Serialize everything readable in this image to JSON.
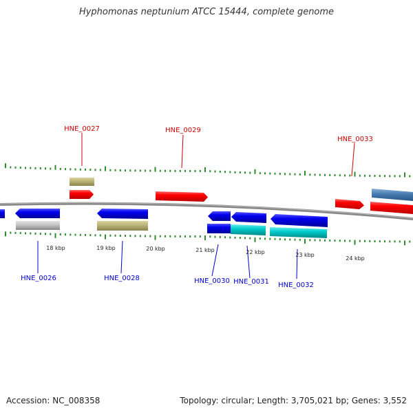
{
  "title": "Hyphomonas neptunium ATCC 15444, complete genome",
  "footer": {
    "accession": "Accession: NC_008358",
    "stats": "Topology: circular; Length: 3,705,021 bp; Genes: 3,552"
  },
  "colors": {
    "forward_cds": "#ff0000",
    "reverse_cds": "#0000ee",
    "tick": "#2e8b2e",
    "backbone": "#888888",
    "label_forward": "#cc0000",
    "label_reverse": "#0000cc"
  },
  "ticks": [
    {
      "label": "18 kbp"
    },
    {
      "label": "19 kbp"
    },
    {
      "label": "20 kbp"
    },
    {
      "label": "21 kbp"
    },
    {
      "label": "22 kbp"
    },
    {
      "label": "23 kbp"
    },
    {
      "label": "24 kbp"
    }
  ],
  "genes_forward": [
    {
      "name": "HNE_0027"
    },
    {
      "name": "HNE_0029"
    },
    {
      "name": "HNE_0033"
    }
  ],
  "genes_reverse": [
    {
      "name": "HNE_0026"
    },
    {
      "name": "HNE_0028"
    },
    {
      "name": "HNE_0030"
    },
    {
      "name": "HNE_0031"
    },
    {
      "name": "HNE_0032"
    }
  ]
}
